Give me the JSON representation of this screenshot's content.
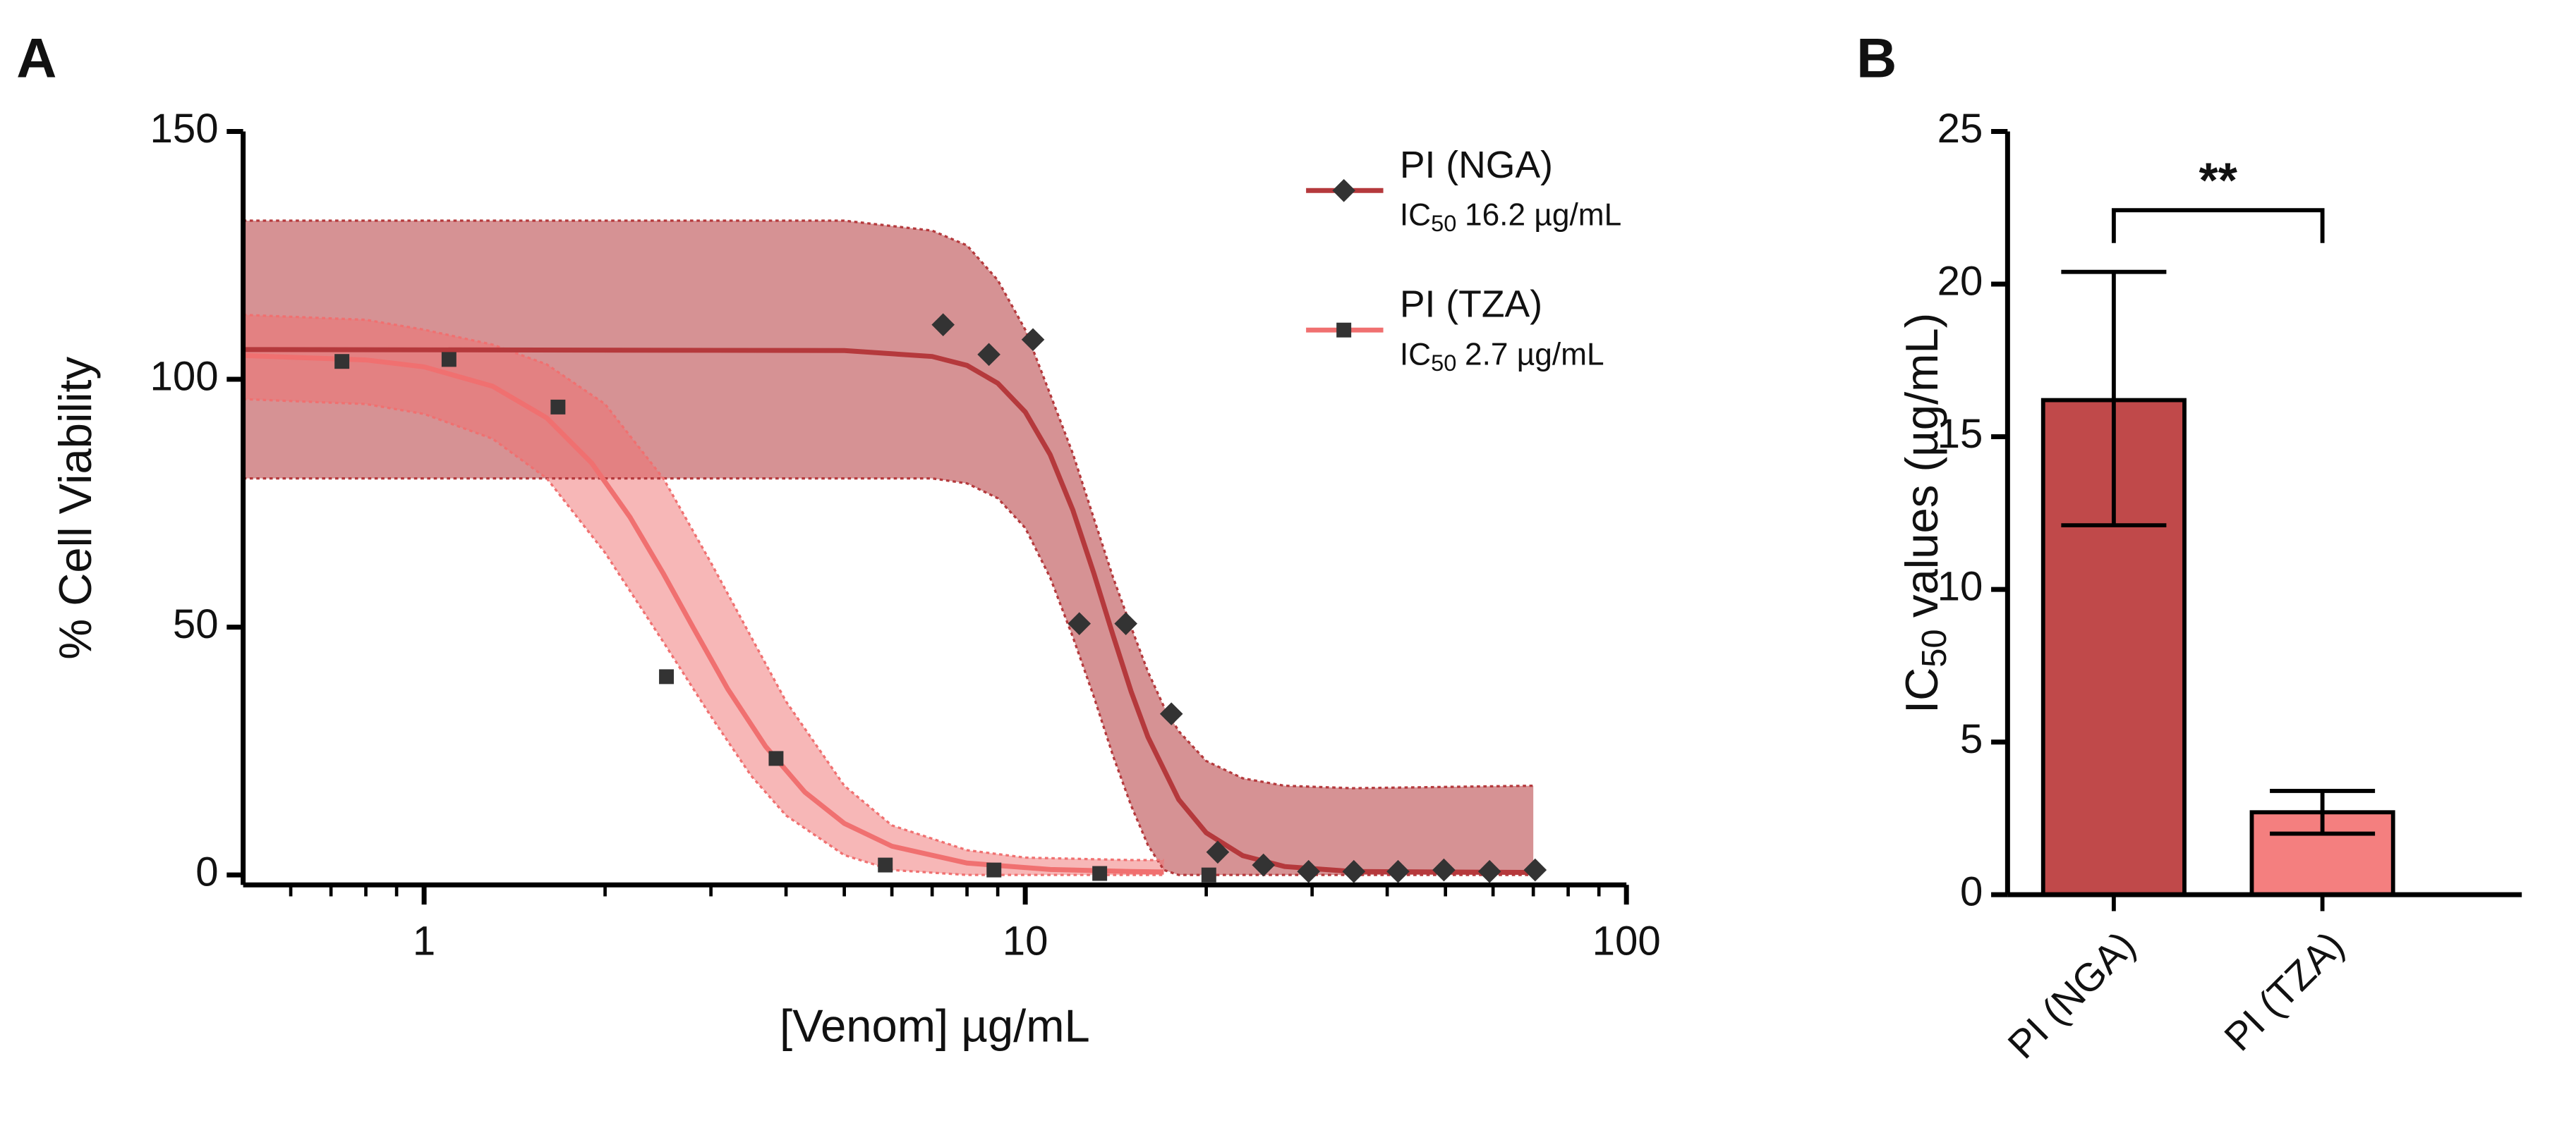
{
  "chart_data": [
    {
      "type": "scatter",
      "panel_label": "A",
      "xlabel": "[Venom] µg/mL",
      "ylabel": "% Cell Viability",
      "xscale": "log",
      "xlim": [
        0.5,
        100
      ],
      "xticks": [
        1,
        10,
        100
      ],
      "xminorticks": [
        0.6,
        0.7,
        0.8,
        0.9,
        2,
        3,
        4,
        5,
        6,
        7,
        8,
        9,
        20,
        30,
        40,
        50,
        60,
        70,
        80,
        90
      ],
      "ylim": [
        -2,
        150
      ],
      "yticks": [
        0,
        50,
        100,
        150
      ],
      "series": [
        {
          "name": "PI (NGA)",
          "note": [
            "IC",
            "50",
            "16.2 µg/mL"
          ],
          "color": "#b5393c",
          "marker": "diamond",
          "x": [
            7.3,
            8.7,
            10.3,
            12.3,
            14.7,
            17.5,
            20.9,
            24.9,
            29.6,
            35.2,
            41.7,
            49.7,
            59.2,
            70.5
          ],
          "values": [
            111,
            105,
            108,
            50.7,
            50.7,
            32.5,
            4.6,
            2,
            0.7,
            0.7,
            0.7,
            1,
            0.7,
            1
          ],
          "fit_x": [
            0.5,
            5,
            7,
            8,
            9,
            10,
            11,
            12,
            13,
            14,
            15,
            16,
            18,
            20,
            23,
            27,
            35,
            70
          ],
          "fit": [
            106,
            105.8,
            104.6,
            102.8,
            99.2,
            93.4,
            84.8,
            73.6,
            60.9,
            48.3,
            37,
            27.8,
            15.2,
            8.5,
            3.9,
            1.7,
            0.7,
            0.5
          ],
          "band_x": [
            0.5,
            5,
            7,
            8,
            9,
            10,
            11,
            12,
            13,
            14,
            15,
            16,
            17,
            18,
            20,
            23,
            27,
            35,
            70
          ],
          "band_upper": [
            132,
            132,
            130,
            127,
            120,
            110,
            97,
            85,
            72,
            60,
            50,
            41,
            34,
            29,
            23,
            19.5,
            18,
            17.5,
            18
          ],
          "band_lower": [
            80,
            80,
            80,
            79,
            76,
            70,
            60,
            48,
            36,
            24,
            14,
            6,
            1,
            0,
            0,
            0,
            0,
            0,
            0
          ]
        },
        {
          "name": "PI (TZA)",
          "note": [
            "IC",
            "50",
            "2.7 µg/mL"
          ],
          "color": "#f07070",
          "marker": "square",
          "x": [
            0.73,
            1.1,
            1.67,
            2.53,
            3.85,
            5.85,
            8.87,
            13.3,
            20.2
          ],
          "values": [
            103.6,
            104,
            94.4,
            40,
            23.5,
            2,
            1,
            0.3,
            0
          ],
          "fit_x": [
            0.5,
            0.8,
            1,
            1.3,
            1.6,
            1.9,
            2.2,
            2.5,
            2.8,
            3.2,
            3.7,
            4.3,
            5,
            6,
            8,
            11,
            15,
            17
          ],
          "fit": [
            104.8,
            103.9,
            102.5,
            98.6,
            92.2,
            83.1,
            72.2,
            60.8,
            50,
            37.5,
            25.9,
            16.7,
            10.4,
            5.8,
            2.4,
            1.1,
            0.7,
            0.6
          ],
          "band_x": [
            0.5,
            0.8,
            1,
            1.3,
            1.6,
            2,
            2.5,
            3,
            3.5,
            4,
            5,
            6,
            8,
            10,
            15,
            17
          ],
          "band_upper": [
            113,
            112,
            110,
            107,
            103,
            95,
            80,
            63,
            48,
            35,
            18,
            10,
            5,
            3.5,
            3,
            3
          ],
          "band_lower": [
            96,
            95,
            93,
            88,
            80,
            65,
            47,
            32,
            20,
            12,
            4,
            1,
            0,
            0,
            0,
            0
          ]
        }
      ]
    },
    {
      "type": "bar",
      "panel_label": "B",
      "ylabel": [
        "IC",
        "50",
        "values (µg/mL)"
      ],
      "categories": [
        "PI (NGA)",
        "PI (TZA)"
      ],
      "values": [
        16.2,
        2.7
      ],
      "error_low": [
        12.1,
        2.0
      ],
      "error_high": [
        20.4,
        3.4
      ],
      "colors": [
        "#c0494a",
        "#f47f7f"
      ],
      "significance": "**",
      "ylim": [
        0,
        25
      ],
      "yticks": [
        0,
        5,
        10,
        15,
        20,
        25
      ]
    }
  ]
}
